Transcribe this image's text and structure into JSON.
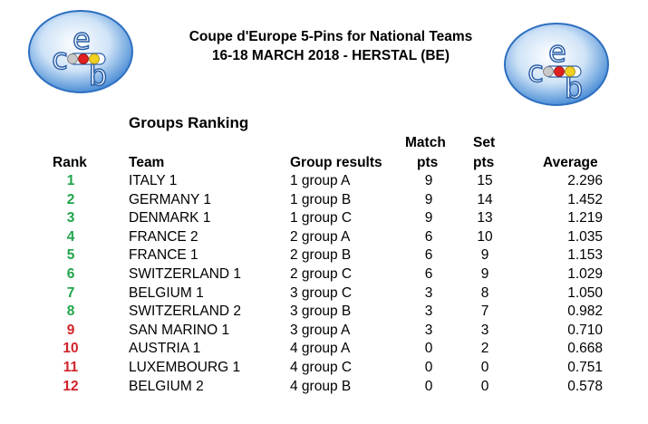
{
  "header": {
    "line1": "Coupe d'Europe 5-Pins for National Teams",
    "line2": "16-18 MARCH 2018 - HERSTAL (BE)"
  },
  "subtitle": "Groups Ranking",
  "columns": {
    "rank": "Rank",
    "team": "Team",
    "group_results": "Group results",
    "match_top": "Match",
    "match_bottom": "pts",
    "set_top": "Set",
    "set_bottom": "pts",
    "average": "Average"
  },
  "colors": {
    "green": "#1fa54a",
    "red": "#d0232a"
  },
  "rows": [
    {
      "rank": "1",
      "team": "ITALY 1",
      "group": "1 group A",
      "match": "9",
      "set": "15",
      "avg": "2.296",
      "color": "green"
    },
    {
      "rank": "2",
      "team": "GERMANY 1",
      "group": "1 group B",
      "match": "9",
      "set": "14",
      "avg": "1.452",
      "color": "green"
    },
    {
      "rank": "3",
      "team": "DENMARK 1",
      "group": "1 group C",
      "match": "9",
      "set": "13",
      "avg": "1.219",
      "color": "green"
    },
    {
      "rank": "4",
      "team": "FRANCE 2",
      "group": "2 group A",
      "match": "6",
      "set": "10",
      "avg": "1.035",
      "color": "green"
    },
    {
      "rank": "5",
      "team": "FRANCE 1",
      "group": "2 group B",
      "match": "6",
      "set": "9",
      "avg": "1.153",
      "color": "green"
    },
    {
      "rank": "6",
      "team": "SWITZERLAND 1",
      "group": "2 group C",
      "match": "6",
      "set": "9",
      "avg": "1.029",
      "color": "green"
    },
    {
      "rank": "7",
      "team": "BELGIUM 1",
      "group": "3 group C",
      "match": "3",
      "set": "8",
      "avg": "1.050",
      "color": "green"
    },
    {
      "rank": "8",
      "team": "SWITZERLAND 2",
      "group": "3 group B",
      "match": "3",
      "set": "7",
      "avg": "0.982",
      "color": "green"
    },
    {
      "rank": "9",
      "team": "SAN MARINO 1",
      "group": "3 group A",
      "match": "3",
      "set": "3",
      "avg": "0.710",
      "color": "red"
    },
    {
      "rank": "10",
      "team": "AUSTRIA 1",
      "group": "4 group A",
      "match": "0",
      "set": "2",
      "avg": "0.668",
      "color": "red"
    },
    {
      "rank": "11",
      "team": "LUXEMBOURG 1",
      "group": "4 group C",
      "match": "0",
      "set": "0",
      "avg": "0.751",
      "color": "red"
    },
    {
      "rank": "12",
      "team": "BELGIUM 2",
      "group": "4 group B",
      "match": "0",
      "set": "0",
      "avg": "0.578",
      "color": "red"
    }
  ]
}
